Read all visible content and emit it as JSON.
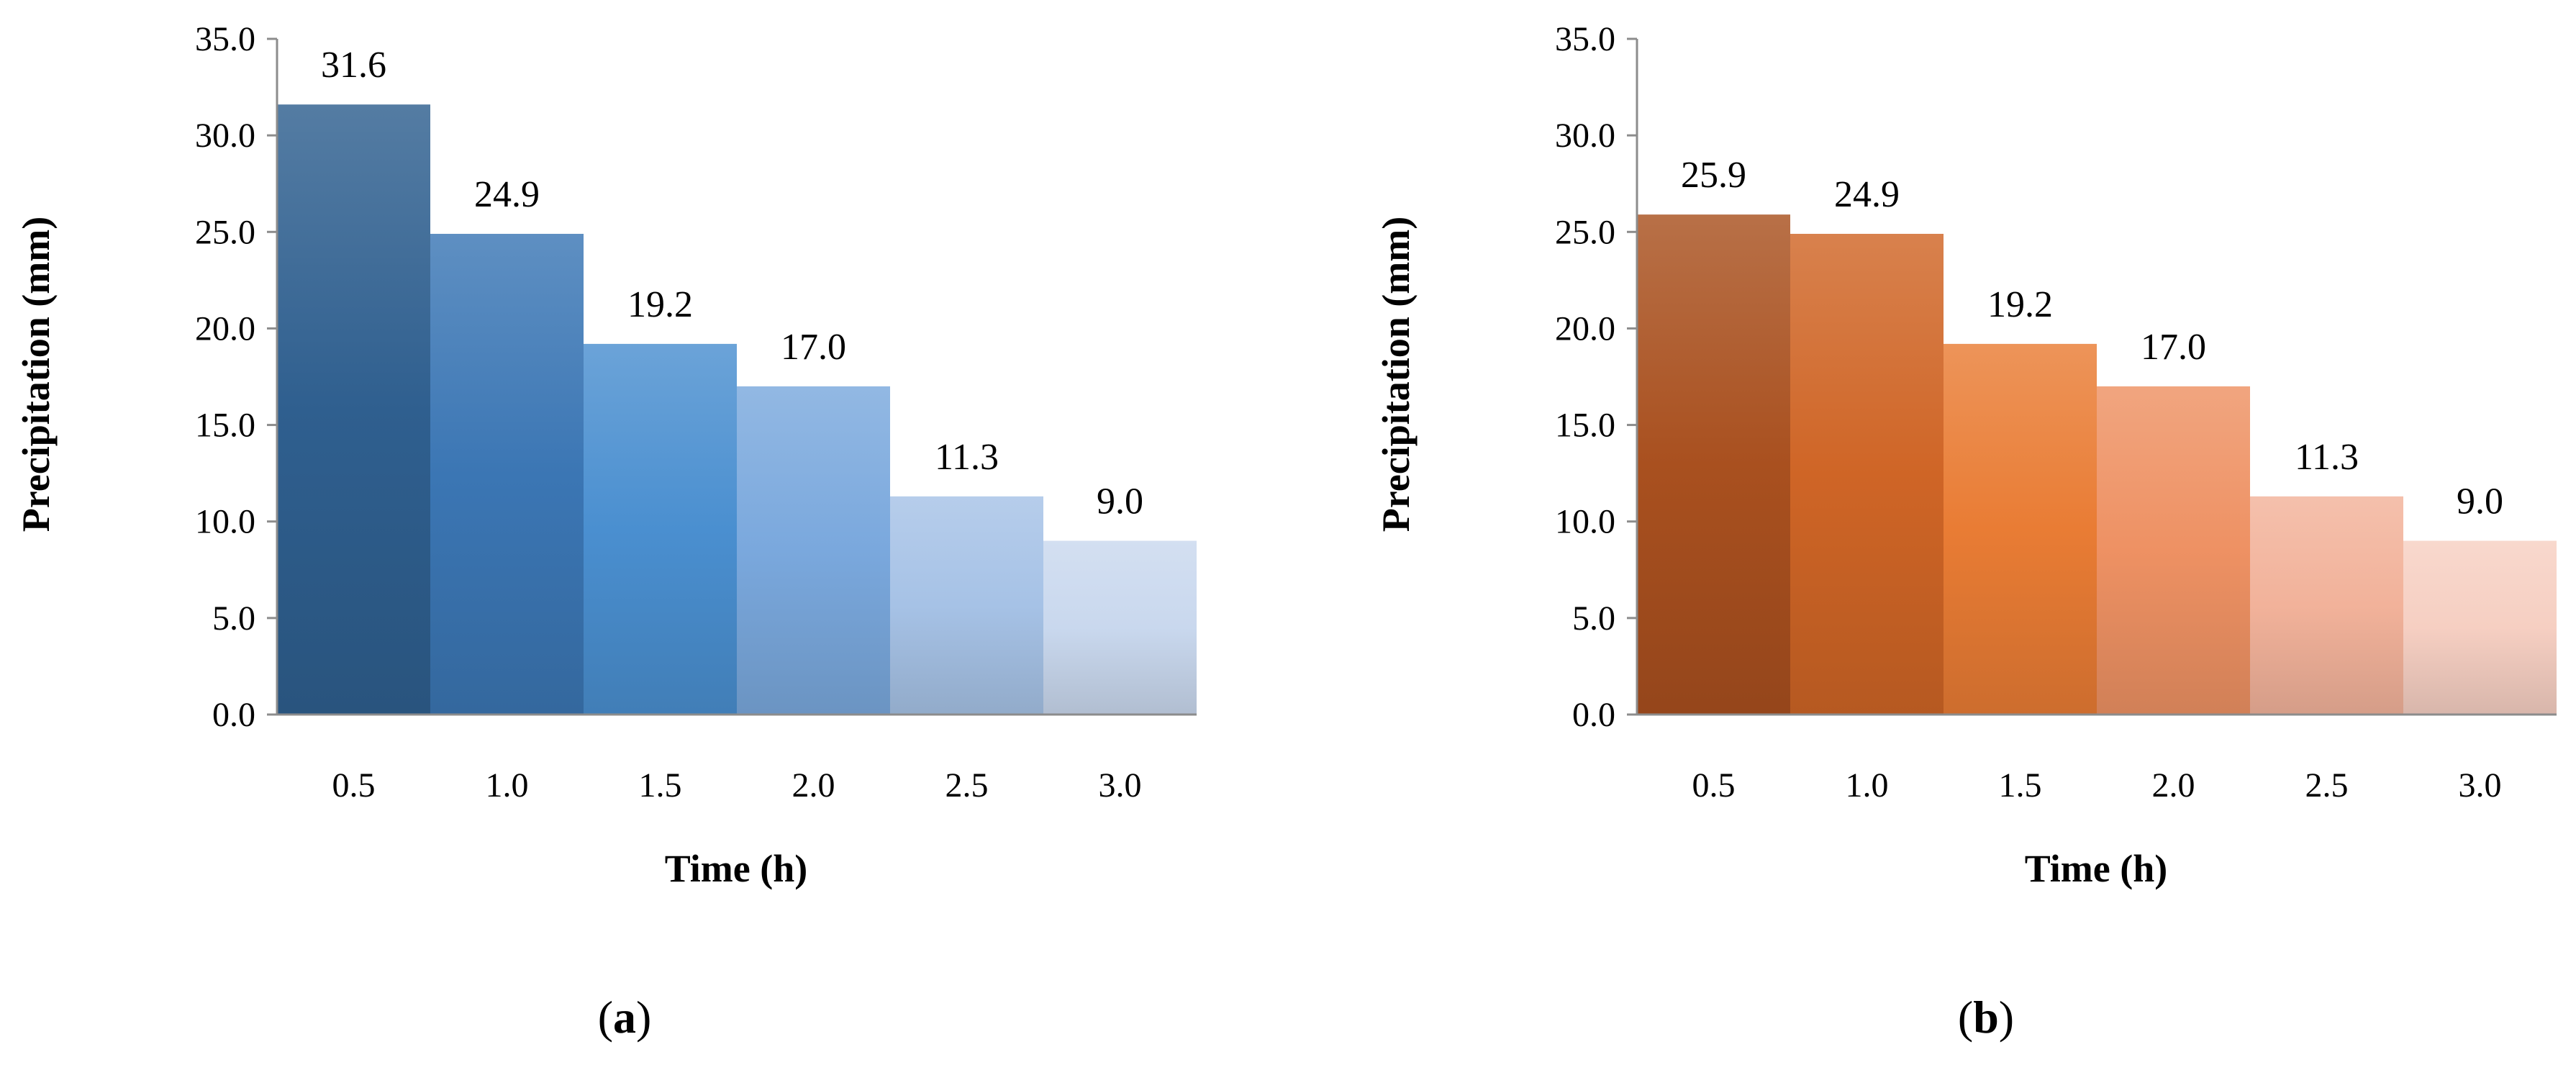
{
  "chart_data": [
    {
      "type": "bar",
      "panel_label": "a",
      "categories": [
        "0.5",
        "1.0",
        "1.5",
        "2.0",
        "2.5",
        "3.0"
      ],
      "values": [
        31.6,
        24.9,
        19.2,
        17.0,
        11.3,
        9.0
      ],
      "data_labels": [
        "31.6",
        "24.9",
        "19.2",
        "17.0",
        "11.3",
        "9.0"
      ],
      "xlabel": "Time (h)",
      "ylabel": "Precipitation (mm)",
      "ylim": [
        0,
        35
      ],
      "yticks": [
        "0.0",
        "5.0",
        "10.0",
        "15.0",
        "20.0",
        "25.0",
        "30.0",
        "35.0"
      ],
      "grid": false,
      "bar_colors": [
        "#2f5f8f",
        "#3b76b4",
        "#4a8fd0",
        "#7aa8dd",
        "#a6c2e6",
        "#c9d8ee"
      ]
    },
    {
      "type": "bar",
      "panel_label": "b",
      "categories": [
        "0.5",
        "1.0",
        "1.5",
        "2.0",
        "2.5",
        "3.0"
      ],
      "values": [
        25.9,
        24.9,
        19.2,
        17.0,
        11.3,
        9.0
      ],
      "data_labels": [
        "25.9",
        "24.9",
        "19.2",
        "17.0",
        "11.3",
        "9.0"
      ],
      "xlabel": "Time (h)",
      "ylabel": "Precipitation (mm)",
      "ylim": [
        0,
        35
      ],
      "yticks": [
        "0.0",
        "5.0",
        "10.0",
        "15.0",
        "20.0",
        "25.0",
        "30.0",
        "35.0"
      ],
      "grid": false,
      "bar_colors": [
        "#a9501f",
        "#cf6526",
        "#e97c34",
        "#ee9163",
        "#f2b29a",
        "#f6cfc2"
      ]
    }
  ],
  "panels": {
    "a": {
      "open": "(",
      "letter": "a",
      "close": ")"
    },
    "b": {
      "open": "(",
      "letter": "b",
      "close": ")"
    }
  },
  "colors": {
    "axis": "#8c8c8c",
    "text": "#000000",
    "background": "#ffffff"
  }
}
